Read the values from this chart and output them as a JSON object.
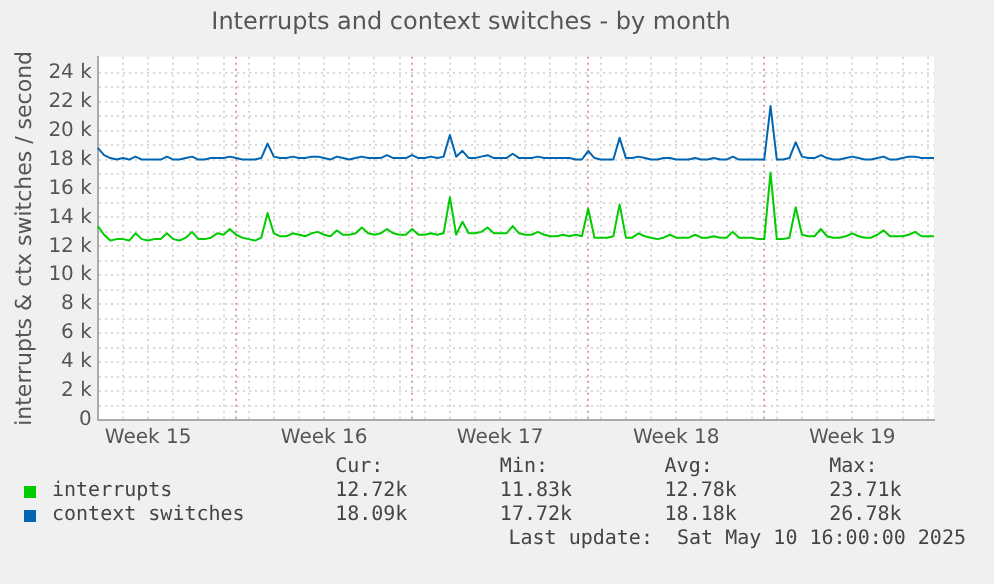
{
  "chart_data": {
    "type": "line",
    "title": "Interrupts and context switches - by month",
    "ylabel": "interrupts & ctx switches / second",
    "categories": [
      null,
      null,
      null,
      null,
      null,
      null,
      null,
      null,
      "Week 15",
      null,
      null,
      null,
      null,
      null,
      null,
      null,
      null,
      null,
      null,
      null,
      null,
      null,
      null,
      null,
      null,
      null,
      null,
      null,
      null,
      null,
      null,
      null,
      null,
      null,
      null,
      null,
      "Week 16",
      null,
      null,
      null,
      null,
      null,
      null,
      null,
      null,
      null,
      null,
      null,
      null,
      null,
      null,
      null,
      null,
      null,
      null,
      null,
      null,
      null,
      null,
      null,
      null,
      null,
      null,
      null,
      "Week 17",
      null,
      null,
      null,
      null,
      null,
      null,
      null,
      null,
      null,
      null,
      null,
      null,
      null,
      null,
      null,
      null,
      null,
      null,
      null,
      null,
      null,
      null,
      null,
      null,
      null,
      null,
      null,
      "Week 18",
      null,
      null,
      null,
      null,
      null,
      null,
      null,
      null,
      null,
      null,
      null,
      null,
      null,
      null,
      null,
      null,
      null,
      null,
      null,
      null,
      null,
      null,
      null,
      null,
      null,
      null,
      null,
      "Week 19",
      null,
      null,
      null,
      null,
      null,
      null,
      null,
      null,
      null,
      null,
      null,
      null,
      null
    ],
    "series": [
      {
        "name": "interrupts",
        "color": "#00cc00",
        "values": [
          13400,
          12800,
          12400,
          12500,
          12500,
          12400,
          12900,
          12500,
          12400,
          12500,
          12500,
          12900,
          12500,
          12400,
          12600,
          13000,
          12500,
          12500,
          12600,
          12900,
          12800,
          13200,
          12800,
          12600,
          12500,
          12400,
          12600,
          14300,
          12900,
          12700,
          12700,
          12900,
          12800,
          12700,
          12900,
          13000,
          12800,
          12700,
          13100,
          12800,
          12800,
          12900,
          13300,
          12900,
          12800,
          12900,
          13200,
          12900,
          12800,
          12800,
          13200,
          12800,
          12800,
          12900,
          12800,
          12900,
          15400,
          12800,
          13700,
          12900,
          12900,
          13000,
          13300,
          12900,
          12900,
          12900,
          13400,
          12900,
          12800,
          12800,
          13000,
          12800,
          12700,
          12700,
          12800,
          12700,
          12800,
          12700,
          14600,
          12600,
          12600,
          12600,
          12700,
          14900,
          12600,
          12600,
          12900,
          12700,
          12600,
          12500,
          12600,
          12800,
          12600,
          12600,
          12600,
          12800,
          12600,
          12600,
          12700,
          12600,
          12600,
          13000,
          12600,
          12600,
          12600,
          12500,
          12500,
          17100,
          12500,
          12500,
          12600,
          14700,
          12800,
          12700,
          12700,
          13200,
          12700,
          12600,
          12600,
          12700,
          12900,
          12700,
          12600,
          12600,
          12800,
          13100,
          12700,
          12700,
          12700,
          12800,
          13000,
          12700,
          12700,
          12700
        ]
      },
      {
        "name": "context switches",
        "color": "#0066b3",
        "values": [
          18800,
          18300,
          18100,
          18000,
          18100,
          18000,
          18200,
          18000,
          18000,
          18000,
          18000,
          18200,
          18000,
          18000,
          18100,
          18200,
          18000,
          18000,
          18100,
          18100,
          18100,
          18200,
          18100,
          18000,
          18000,
          18000,
          18100,
          19100,
          18200,
          18100,
          18100,
          18200,
          18100,
          18100,
          18200,
          18200,
          18100,
          18000,
          18200,
          18100,
          18000,
          18100,
          18200,
          18100,
          18100,
          18100,
          18300,
          18100,
          18100,
          18100,
          18300,
          18100,
          18100,
          18200,
          18100,
          18200,
          19700,
          18200,
          18600,
          18100,
          18100,
          18200,
          18300,
          18100,
          18100,
          18100,
          18400,
          18100,
          18100,
          18100,
          18200,
          18100,
          18100,
          18100,
          18100,
          18100,
          18000,
          18000,
          18600,
          18100,
          18000,
          18000,
          18000,
          19500,
          18100,
          18100,
          18200,
          18100,
          18000,
          18000,
          18100,
          18100,
          18000,
          18000,
          18000,
          18100,
          18000,
          18000,
          18100,
          18000,
          18000,
          18200,
          18000,
          18000,
          18000,
          18000,
          18000,
          21700,
          18000,
          18000,
          18100,
          19200,
          18200,
          18100,
          18100,
          18300,
          18100,
          18000,
          18000,
          18100,
          18200,
          18100,
          18000,
          18000,
          18100,
          18200,
          18000,
          18000,
          18100,
          18200,
          18200,
          18100,
          18100,
          18100
        ]
      }
    ],
    "ylim": [
      0,
      25100
    ],
    "yticks": [
      {
        "value": 0,
        "label": "0"
      },
      {
        "value": 1000,
        "label": null
      },
      {
        "value": 2000,
        "label": "2 k"
      },
      {
        "value": 3000,
        "label": null
      },
      {
        "value": 4000,
        "label": "4 k"
      },
      {
        "value": 5000,
        "label": null
      },
      {
        "value": 6000,
        "label": "6 k"
      },
      {
        "value": 7000,
        "label": null
      },
      {
        "value": 8000,
        "label": "8 k"
      },
      {
        "value": 9000,
        "label": null
      },
      {
        "value": 10000,
        "label": "10 k"
      },
      {
        "value": 11000,
        "label": null
      },
      {
        "value": 12000,
        "label": "12 k"
      },
      {
        "value": 13000,
        "label": null
      },
      {
        "value": 14000,
        "label": "14 k"
      },
      {
        "value": 15000,
        "label": null
      },
      {
        "value": 16000,
        "label": "16 k"
      },
      {
        "value": 17000,
        "label": null
      },
      {
        "value": 18000,
        "label": "18 k"
      },
      {
        "value": 19000,
        "label": null
      },
      {
        "value": 20000,
        "label": "20 k"
      },
      {
        "value": 21000,
        "label": null
      },
      {
        "value": 22000,
        "label": "22 k"
      },
      {
        "value": 23000,
        "label": null
      },
      {
        "value": 24000,
        "label": "24 k"
      }
    ],
    "grid": true,
    "legend": "bottom",
    "marker": "none",
    "line_style": "solid",
    "annotations": [
      "Cur:",
      "Min:",
      "Avg:",
      "Max:",
      "12.72k",
      "11.83k",
      "12.78k",
      "23.71k",
      "18.09k",
      "17.72k",
      "18.18k",
      "26.78k",
      "Last update:  Sat May 10 16:00:00 2025"
    ]
  }
}
